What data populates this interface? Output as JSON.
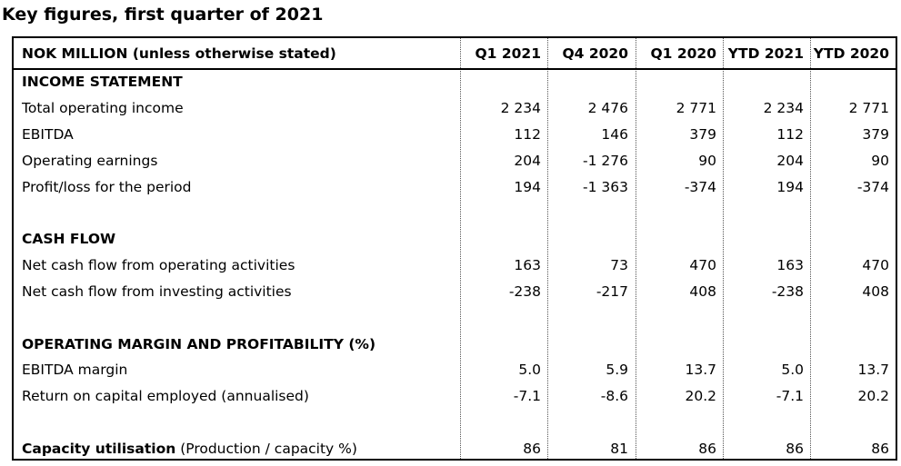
{
  "title": "Key figures, first quarter of 2021",
  "header": {
    "label": "NOK MILLION (unless otherwise stated)",
    "columns": [
      "Q1 2021",
      "Q4 2020",
      "Q1 2020",
      "YTD 2021",
      "YTD 2020"
    ]
  },
  "income_statement": {
    "heading": "INCOME STATEMENT",
    "rows": [
      {
        "label": "Total operating income",
        "values": [
          "2 234",
          "2 476",
          "2 771",
          "2 234",
          "2 771"
        ]
      },
      {
        "label": "EBITDA",
        "values": [
          "112",
          "146",
          "379",
          "112",
          "379"
        ]
      },
      {
        "label": "Operating earnings",
        "values": [
          "204",
          "-1 276",
          "90",
          "204",
          "90"
        ]
      },
      {
        "label": "Profit/loss for the period",
        "values": [
          "194",
          "-1 363",
          "-374",
          "194",
          "-374"
        ]
      }
    ]
  },
  "cash_flow": {
    "heading": "CASH FLOW",
    "rows": [
      {
        "label": "Net cash flow from operating activities",
        "values": [
          "163",
          "73",
          "470",
          "163",
          "470"
        ]
      },
      {
        "label": "Net cash flow from investing activities",
        "values": [
          "-238",
          "-217",
          "408",
          "-238",
          "408"
        ]
      }
    ]
  },
  "margins": {
    "heading": "OPERATING MARGIN AND PROFITABILITY (%)",
    "rows": [
      {
        "label": "EBITDA margin",
        "values": [
          "5.0",
          "5.9",
          "13.7",
          "5.0",
          "13.7"
        ]
      },
      {
        "label": "Return on capital employed (annualised)",
        "values": [
          "-7.1",
          "-8.6",
          "20.2",
          "-7.1",
          "20.2"
        ]
      }
    ]
  },
  "capacity": {
    "label_bold": "Capacity utilisation",
    "label_rest": " (Production / capacity %)",
    "values": [
      "86",
      "81",
      "86",
      "86",
      "86"
    ]
  }
}
